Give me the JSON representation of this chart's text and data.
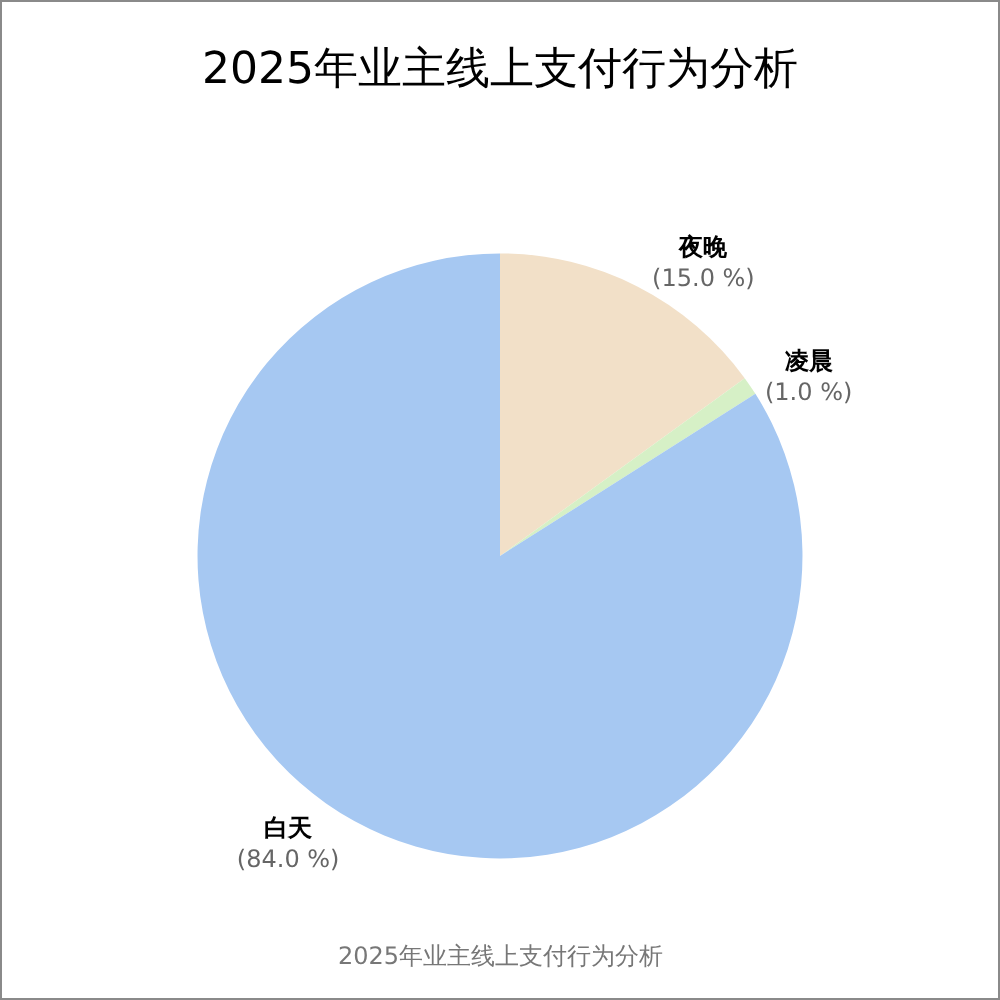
{
  "chart_data": {
    "type": "pie",
    "title": "2025年业主线上支付行为分析",
    "categories": [
      "夜晚",
      "凌晨",
      "白天"
    ],
    "values": [
      15.0,
      1.0,
      84.0
    ],
    "value_labels": [
      "(15.0 %)",
      "(1.0 %)",
      "(84.0 %)"
    ],
    "colors": [
      "#f2e0c8",
      "#d6f0c6",
      "#a6c8f2"
    ],
    "annotations": [
      "2025年业主线上支付行为分析"
    ]
  }
}
